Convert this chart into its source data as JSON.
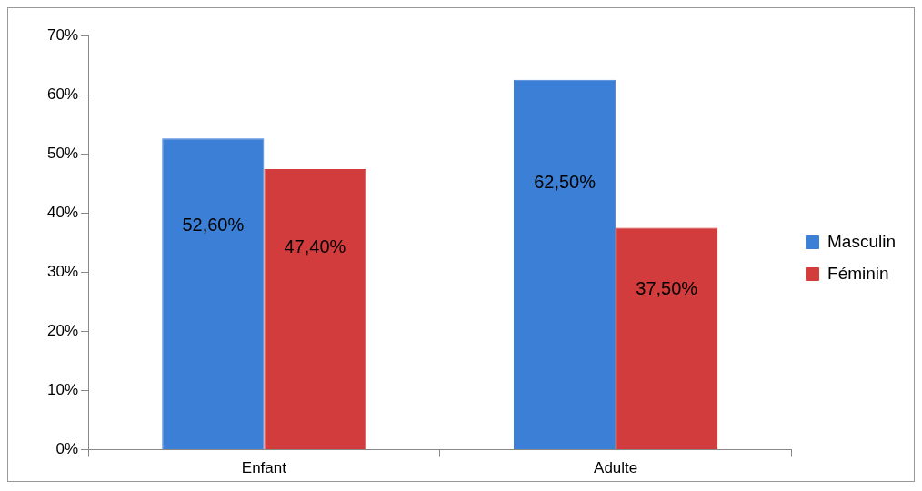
{
  "chart_data": {
    "type": "bar",
    "categories": [
      "Enfant",
      "Adulte"
    ],
    "series": [
      {
        "name": "Masculin",
        "color": "#3c7fd6",
        "values": [
          52.6,
          62.5
        ],
        "value_labels": [
          "52,60%",
          "62,50%"
        ]
      },
      {
        "name": "Féminin",
        "color": "#d23c3c",
        "values": [
          47.4,
          37.5
        ],
        "value_labels": [
          "47,40%",
          "37,50%"
        ]
      }
    ],
    "ylim": [
      0,
      70
    ],
    "yticks": [
      {
        "value": 0,
        "label": "0%"
      },
      {
        "value": 10,
        "label": "10%"
      },
      {
        "value": 20,
        "label": "20%"
      },
      {
        "value": 30,
        "label": "30%"
      },
      {
        "value": 40,
        "label": "40%"
      },
      {
        "value": 50,
        "label": "50%"
      },
      {
        "value": 60,
        "label": "60%"
      },
      {
        "value": 70,
        "label": "70%"
      }
    ],
    "legend": "right"
  }
}
